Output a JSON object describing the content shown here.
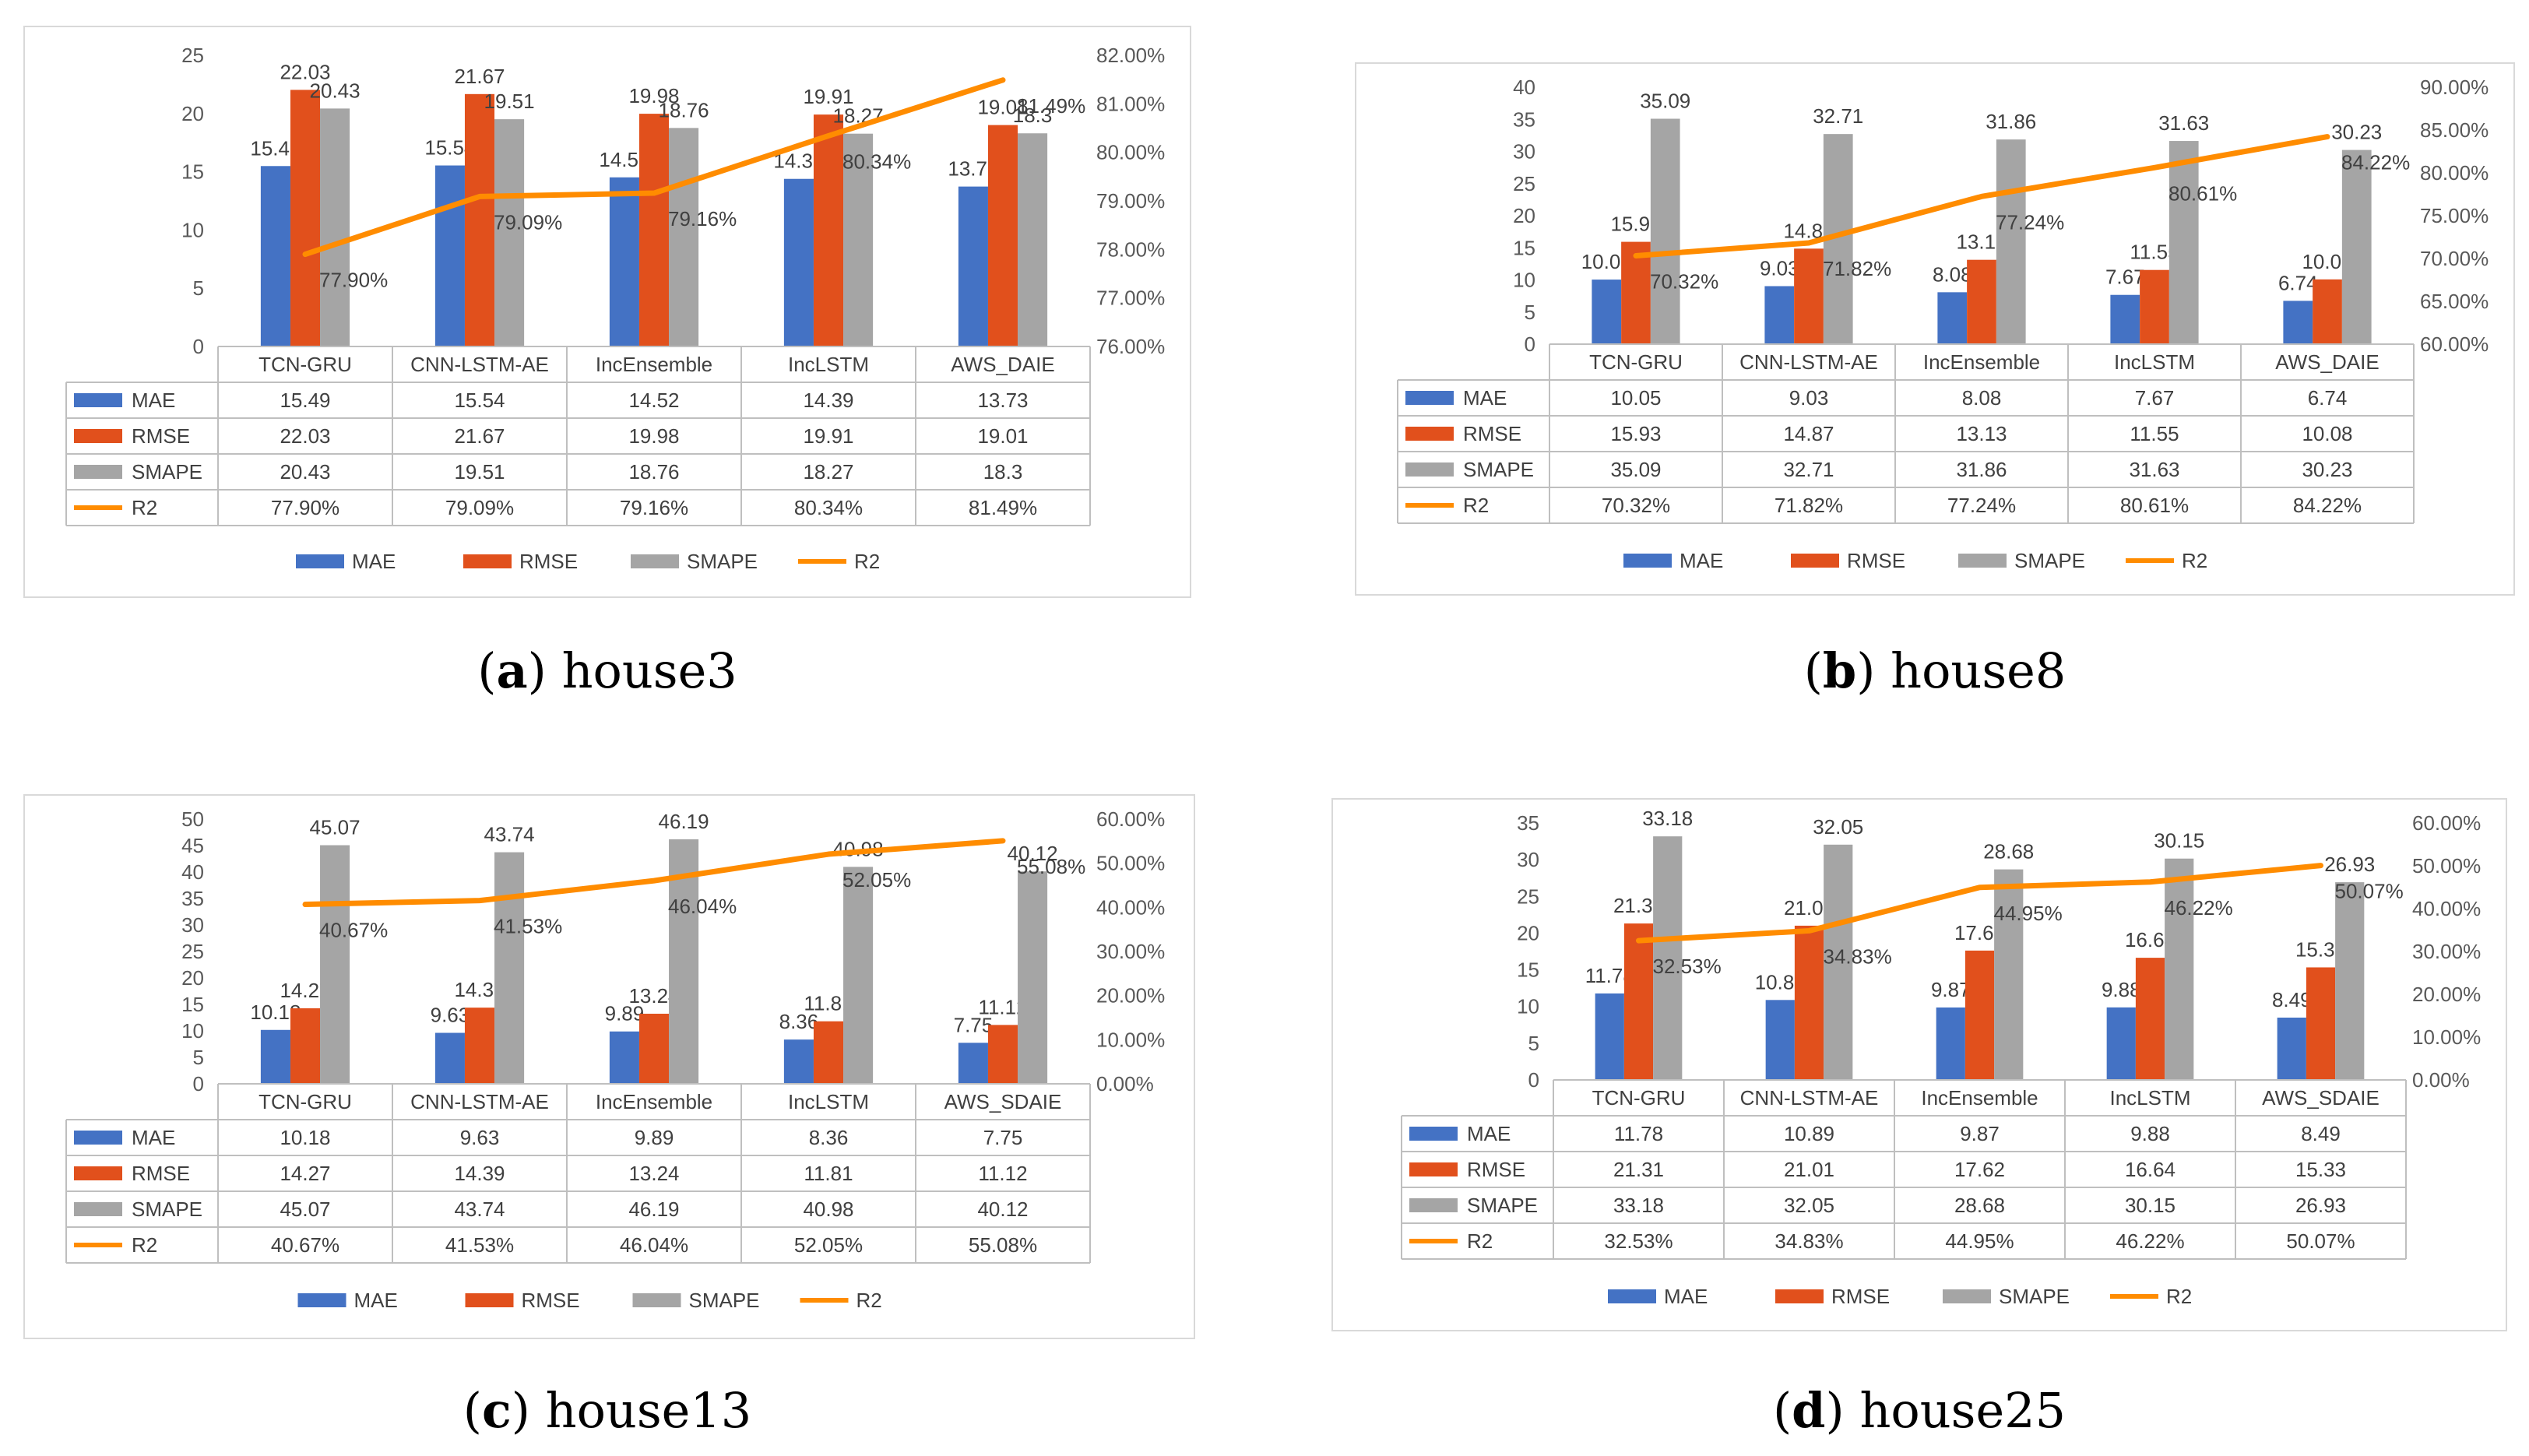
{
  "chart_data": [
    {
      "type": "bar",
      "caption": {
        "letter": "a",
        "name": "house3"
      },
      "categories": [
        "TCN-GRU",
        "CNN-LSTM-AE",
        "IncEnsemble",
        "IncLSTM",
        "AWS_DAIE"
      ],
      "series": [
        {
          "name": "MAE",
          "values": [
            15.49,
            15.54,
            14.52,
            14.39,
            13.73
          ],
          "color": "#4472C4"
        },
        {
          "name": "RMSE",
          "values": [
            22.03,
            21.67,
            19.98,
            19.91,
            19.01
          ],
          "color": "#E1501C"
        },
        {
          "name": "SMAPE",
          "values": [
            20.43,
            19.51,
            18.76,
            18.27,
            18.3
          ],
          "color": "#A5A5A5"
        }
      ],
      "line_series": {
        "name": "R2",
        "values": [
          77.9,
          79.09,
          79.16,
          80.34,
          81.49
        ],
        "color": "#FF8C00"
      },
      "ylim": [
        0,
        25
      ],
      "yticks": [
        0,
        5,
        10,
        15,
        20,
        25
      ],
      "y2lim": [
        76,
        82
      ],
      "y2ticks": [
        "76.00%",
        "77.00%",
        "78.00%",
        "79.00%",
        "80.00%",
        "81.00%",
        "82.00%"
      ],
      "bar_labels": [
        [
          "15.49",
          "15.54",
          "14.52",
          "14.39",
          "13.73"
        ],
        [
          "22.03",
          "21.67",
          "19.98",
          "19.91",
          "19.01"
        ],
        [
          "20.43",
          "19.51",
          "18.76",
          "18.27",
          "18.3"
        ]
      ],
      "line_labels": [
        "77.90%",
        "79.09%",
        "79.16%",
        "80.34%",
        "81.49%"
      ],
      "table_rows": [
        {
          "label": "MAE",
          "values": [
            "15.49",
            "15.54",
            "14.52",
            "14.39",
            "13.73"
          ]
        },
        {
          "label": "RMSE",
          "values": [
            "22.03",
            "21.67",
            "19.98",
            "19.91",
            "19.01"
          ]
        },
        {
          "label": "SMAPE",
          "values": [
            "20.43",
            "19.51",
            "18.76",
            "18.27",
            "18.3"
          ]
        },
        {
          "label": "R2",
          "values": [
            "77.90%",
            "79.09%",
            "79.16%",
            "80.34%",
            "81.49%"
          ]
        }
      ],
      "legend": [
        "MAE",
        "RMSE",
        "SMAPE",
        "R2"
      ],
      "legend_position": "bottom",
      "grid": false
    },
    {
      "type": "bar",
      "caption": {
        "letter": "b",
        "name": "house8"
      },
      "categories": [
        "TCN-GRU",
        "CNN-LSTM-AE",
        "IncEnsemble",
        "IncLSTM",
        "AWS_DAIE"
      ],
      "series": [
        {
          "name": "MAE",
          "values": [
            10.05,
            9.03,
            8.08,
            7.67,
            6.74
          ],
          "color": "#4472C4"
        },
        {
          "name": "RMSE",
          "values": [
            15.93,
            14.87,
            13.13,
            11.55,
            10.08
          ],
          "color": "#E1501C"
        },
        {
          "name": "SMAPE",
          "values": [
            35.09,
            32.71,
            31.86,
            31.63,
            30.23
          ],
          "color": "#A5A5A5"
        }
      ],
      "line_series": {
        "name": "R2",
        "values": [
          70.32,
          71.82,
          77.24,
          80.61,
          84.22
        ],
        "color": "#FF8C00"
      },
      "ylim": [
        0,
        40
      ],
      "yticks": [
        0,
        5,
        10,
        15,
        20,
        25,
        30,
        35,
        40
      ],
      "y2lim": [
        60,
        90
      ],
      "y2ticks": [
        "60.00%",
        "65.00%",
        "70.00%",
        "75.00%",
        "80.00%",
        "85.00%",
        "90.00%"
      ],
      "bar_labels": [
        [
          "10.05",
          "9.03",
          "8.08",
          "7.67",
          "6.74"
        ],
        [
          "15.93",
          "14.87",
          "13.13",
          "11.55",
          "10.08"
        ],
        [
          "35.09",
          "32.71",
          "31.86",
          "31.63",
          "30.23"
        ]
      ],
      "line_labels": [
        "70.32%",
        "71.82%",
        "77.24%",
        "80.61%",
        "84.22%"
      ],
      "table_rows": [
        {
          "label": "MAE",
          "values": [
            "10.05",
            "9.03",
            "8.08",
            "7.67",
            "6.74"
          ]
        },
        {
          "label": "RMSE",
          "values": [
            "15.93",
            "14.87",
            "13.13",
            "11.55",
            "10.08"
          ]
        },
        {
          "label": "SMAPE",
          "values": [
            "35.09",
            "32.71",
            "31.86",
            "31.63",
            "30.23"
          ]
        },
        {
          "label": "R2",
          "values": [
            "70.32%",
            "71.82%",
            "77.24%",
            "80.61%",
            "84.22%"
          ]
        }
      ],
      "legend": [
        "MAE",
        "RMSE",
        "SMAPE",
        "R2"
      ],
      "legend_position": "bottom",
      "grid": false
    },
    {
      "type": "bar",
      "caption": {
        "letter": "c",
        "name": "house13"
      },
      "categories": [
        "TCN-GRU",
        "CNN-LSTM-AE",
        "IncEnsemble",
        "IncLSTM",
        "AWS_SDAIE"
      ],
      "series": [
        {
          "name": "MAE",
          "values": [
            10.18,
            9.63,
            9.89,
            8.36,
            7.75
          ],
          "color": "#4472C4"
        },
        {
          "name": "RMSE",
          "values": [
            14.27,
            14.39,
            13.24,
            11.81,
            11.12
          ],
          "color": "#E1501C"
        },
        {
          "name": "SMAPE",
          "values": [
            45.07,
            43.74,
            46.19,
            40.98,
            40.12
          ],
          "color": "#A5A5A5"
        }
      ],
      "line_series": {
        "name": "R2",
        "values": [
          40.67,
          41.53,
          46.04,
          52.05,
          55.08
        ],
        "color": "#FF8C00"
      },
      "ylim": [
        0,
        50
      ],
      "yticks": [
        0,
        5,
        10,
        15,
        20,
        25,
        30,
        35,
        40,
        45,
        50
      ],
      "y2lim": [
        0,
        60
      ],
      "y2ticks": [
        "0.00%",
        "10.00%",
        "20.00%",
        "30.00%",
        "40.00%",
        "50.00%",
        "60.00%"
      ],
      "bar_labels": [
        [
          "10.18",
          "9.63",
          "9.89",
          "8.36",
          "7.75"
        ],
        [
          "14.27",
          "14.39",
          "13.24",
          "11.81",
          "11.12"
        ],
        [
          "45.07",
          "43.74",
          "46.19",
          "40.98",
          "40.12"
        ]
      ],
      "line_labels": [
        "40.67%",
        "41.53%",
        "46.04%",
        "52.05%",
        "55.08%"
      ],
      "table_rows": [
        {
          "label": "MAE",
          "values": [
            "10.18",
            "9.63",
            "9.89",
            "8.36",
            "7.75"
          ]
        },
        {
          "label": "RMSE",
          "values": [
            "14.27",
            "14.39",
            "13.24",
            "11.81",
            "11.12"
          ]
        },
        {
          "label": "SMAPE",
          "values": [
            "45.07",
            "43.74",
            "46.19",
            "40.98",
            "40.12"
          ]
        },
        {
          "label": "R2",
          "values": [
            "40.67%",
            "41.53%",
            "46.04%",
            "52.05%",
            "55.08%"
          ]
        }
      ],
      "legend": [
        "MAE",
        "RMSE",
        "SMAPE",
        "R2"
      ],
      "legend_position": "bottom",
      "grid": false
    },
    {
      "type": "bar",
      "caption": {
        "letter": "d",
        "name": "house25"
      },
      "categories": [
        "TCN-GRU",
        "CNN-LSTM-AE",
        "IncEnsemble",
        "IncLSTM",
        "AWS_SDAIE"
      ],
      "series": [
        {
          "name": "MAE",
          "values": [
            11.78,
            10.89,
            9.87,
            9.88,
            8.49
          ],
          "color": "#4472C4"
        },
        {
          "name": "RMSE",
          "values": [
            21.31,
            21.01,
            17.62,
            16.64,
            15.33
          ],
          "color": "#E1501C"
        },
        {
          "name": "SMAPE",
          "values": [
            33.18,
            32.05,
            28.68,
            30.15,
            26.93
          ],
          "color": "#A5A5A5"
        }
      ],
      "line_series": {
        "name": "R2",
        "values": [
          32.53,
          34.83,
          44.95,
          46.22,
          50.07
        ],
        "color": "#FF8C00"
      },
      "ylim": [
        0,
        35
      ],
      "yticks": [
        0,
        5,
        10,
        15,
        20,
        25,
        30,
        35
      ],
      "y2lim": [
        0,
        60
      ],
      "y2ticks": [
        "0.00%",
        "10.00%",
        "20.00%",
        "30.00%",
        "40.00%",
        "50.00%",
        "60.00%"
      ],
      "bar_labels": [
        [
          "11.78",
          "10.89",
          "9.87",
          "9.88",
          "8.49"
        ],
        [
          "21.31",
          "21.01",
          "17.62",
          "16.64",
          "15.33"
        ],
        [
          "33.18",
          "32.05",
          "28.68",
          "30.15",
          "26.93"
        ]
      ],
      "line_labels": [
        "32.53%",
        "34.83%",
        "44.95%",
        "46.22%",
        "50.07%"
      ],
      "table_rows": [
        {
          "label": "MAE",
          "values": [
            "11.78",
            "10.89",
            "9.87",
            "9.88",
            "8.49"
          ]
        },
        {
          "label": "RMSE",
          "values": [
            "21.31",
            "21.01",
            "17.62",
            "16.64",
            "15.33"
          ]
        },
        {
          "label": "SMAPE",
          "values": [
            "33.18",
            "32.05",
            "28.68",
            "30.15",
            "26.93"
          ]
        },
        {
          "label": "R2",
          "values": [
            "32.53%",
            "34.83%",
            "44.95%",
            "46.22%",
            "50.07%"
          ]
        }
      ],
      "legend": [
        "MAE",
        "RMSE",
        "SMAPE",
        "R2"
      ],
      "legend_position": "bottom",
      "grid": false
    }
  ]
}
